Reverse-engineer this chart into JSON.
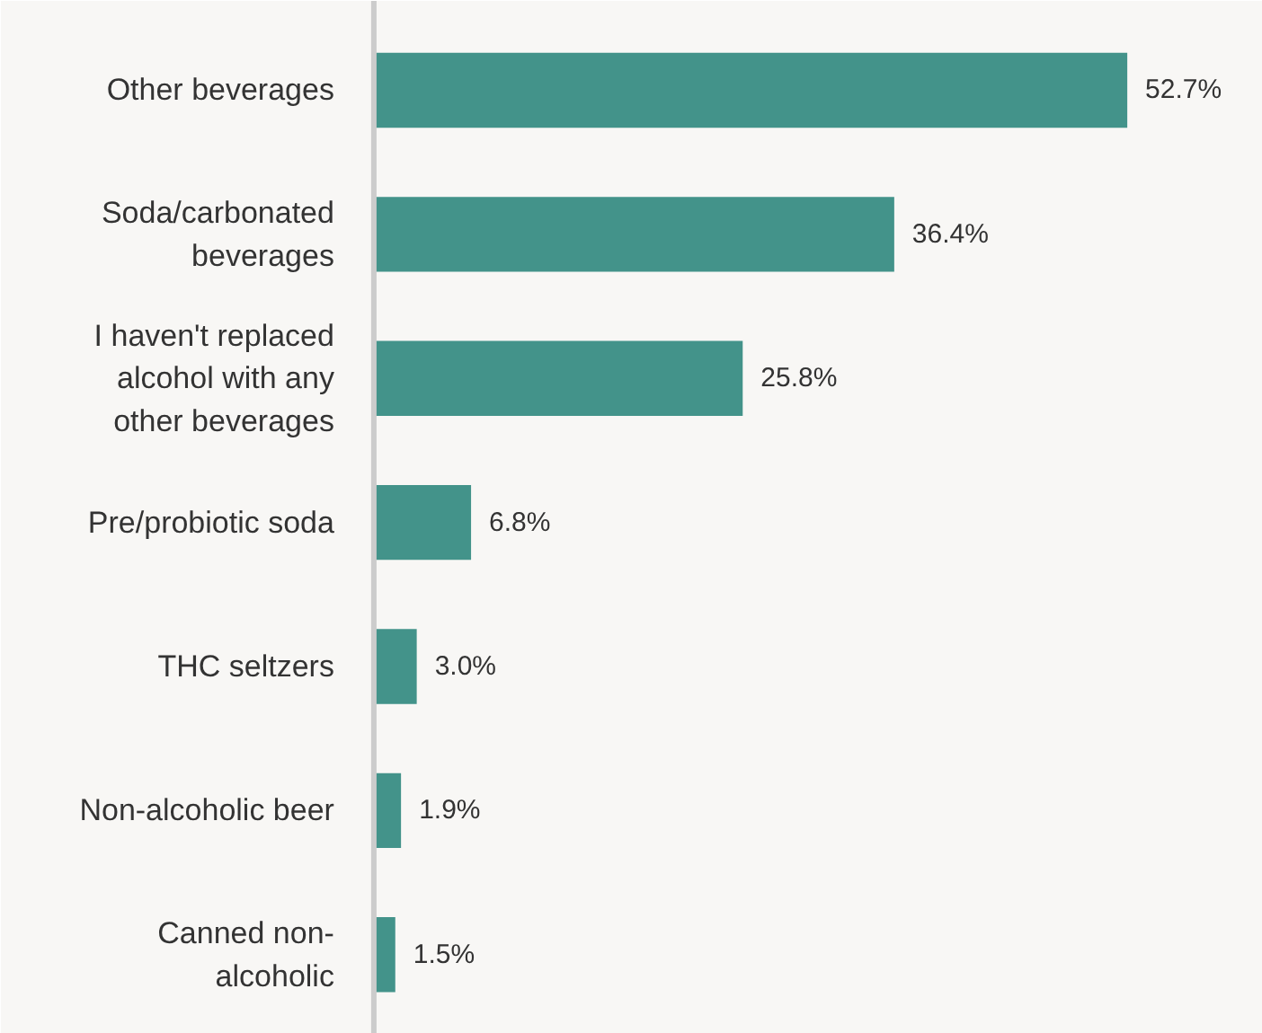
{
  "chart_data": {
    "type": "bar",
    "orientation": "horizontal",
    "categories": [
      "Other beverages",
      "Soda/carbonated beverages",
      "I haven't replaced alcohol with any other beverages",
      "Pre/probiotic soda",
      "THC seltzers",
      "Non-alcoholic beer",
      "Canned non-alcoholic"
    ],
    "values": [
      52.7,
      36.4,
      25.8,
      6.8,
      3.0,
      1.9,
      1.5
    ],
    "value_labels": [
      "52.7%",
      "36.4%",
      "25.8%",
      "6.8%",
      "3.0%",
      "1.9%",
      "1.5%"
    ],
    "color": "#43938a"
  }
}
